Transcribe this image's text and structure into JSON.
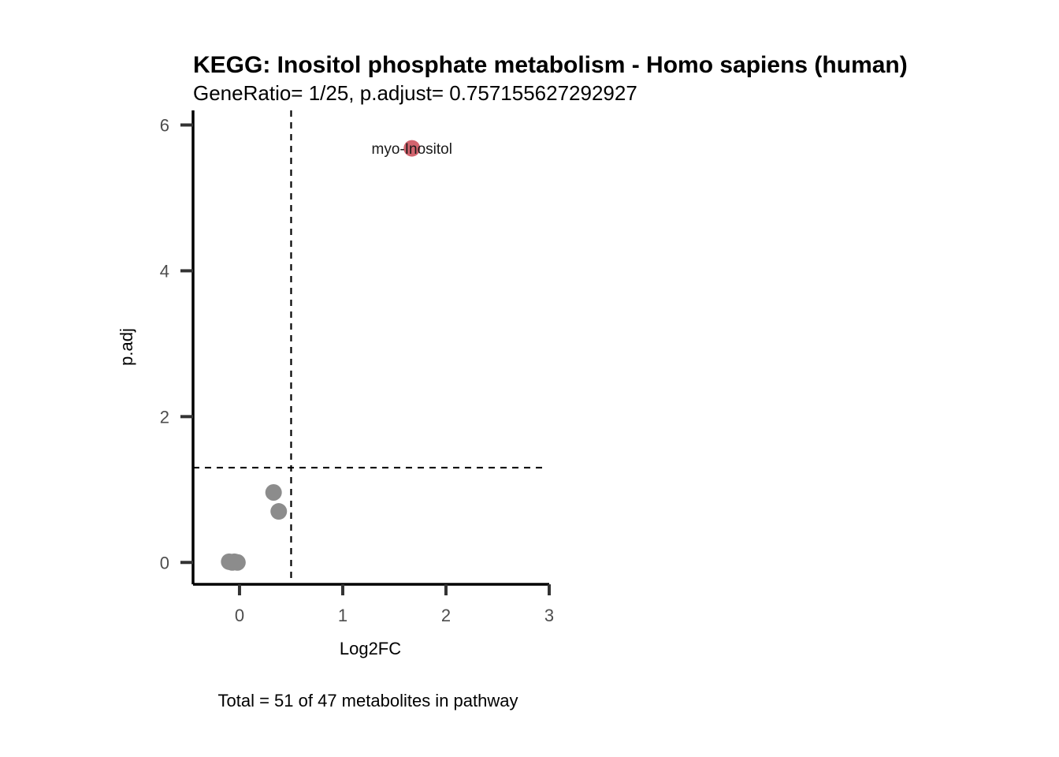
{
  "chart_data": {
    "type": "scatter",
    "title": "KEGG: Inositol phosphate metabolism - Homo sapiens (human)",
    "subtitle": "GeneRatio= 1/25, p.adjust= 0.757155627292927",
    "xlabel": "Log2FC",
    "ylabel": "p.adj",
    "caption": "Total = 51 of 47 metabolites in pathway",
    "xlim": [
      -0.45,
      3.0
    ],
    "ylim": [
      -0.3,
      6.2
    ],
    "x_ticks": [
      0,
      1,
      2,
      3
    ],
    "y_ticks": [
      0,
      2,
      4,
      6
    ],
    "x_tick_labels": [
      "0",
      "1",
      "2",
      "3"
    ],
    "y_tick_labels": [
      "0",
      "2",
      "4",
      "6"
    ],
    "grid": false,
    "reference_lines": {
      "vertical_x": 0.5,
      "horizontal_y": 1.3
    },
    "colors": {
      "significant": "#d2646e",
      "not_significant": "#8c8c8c"
    },
    "points": [
      {
        "x": 1.67,
        "y": 5.68,
        "significant": true,
        "label": "myo-Inositol"
      },
      {
        "x": 0.33,
        "y": 0.96,
        "significant": false,
        "label": ""
      },
      {
        "x": 0.38,
        "y": 0.7,
        "significant": false,
        "label": ""
      },
      {
        "x": -0.1,
        "y": 0.01,
        "significant": false,
        "label": ""
      },
      {
        "x": -0.05,
        "y": 0.01,
        "significant": false,
        "label": ""
      },
      {
        "x": -0.02,
        "y": 0.0,
        "significant": false,
        "label": ""
      },
      {
        "x": -0.07,
        "y": 0.0,
        "significant": false,
        "label": ""
      }
    ]
  }
}
